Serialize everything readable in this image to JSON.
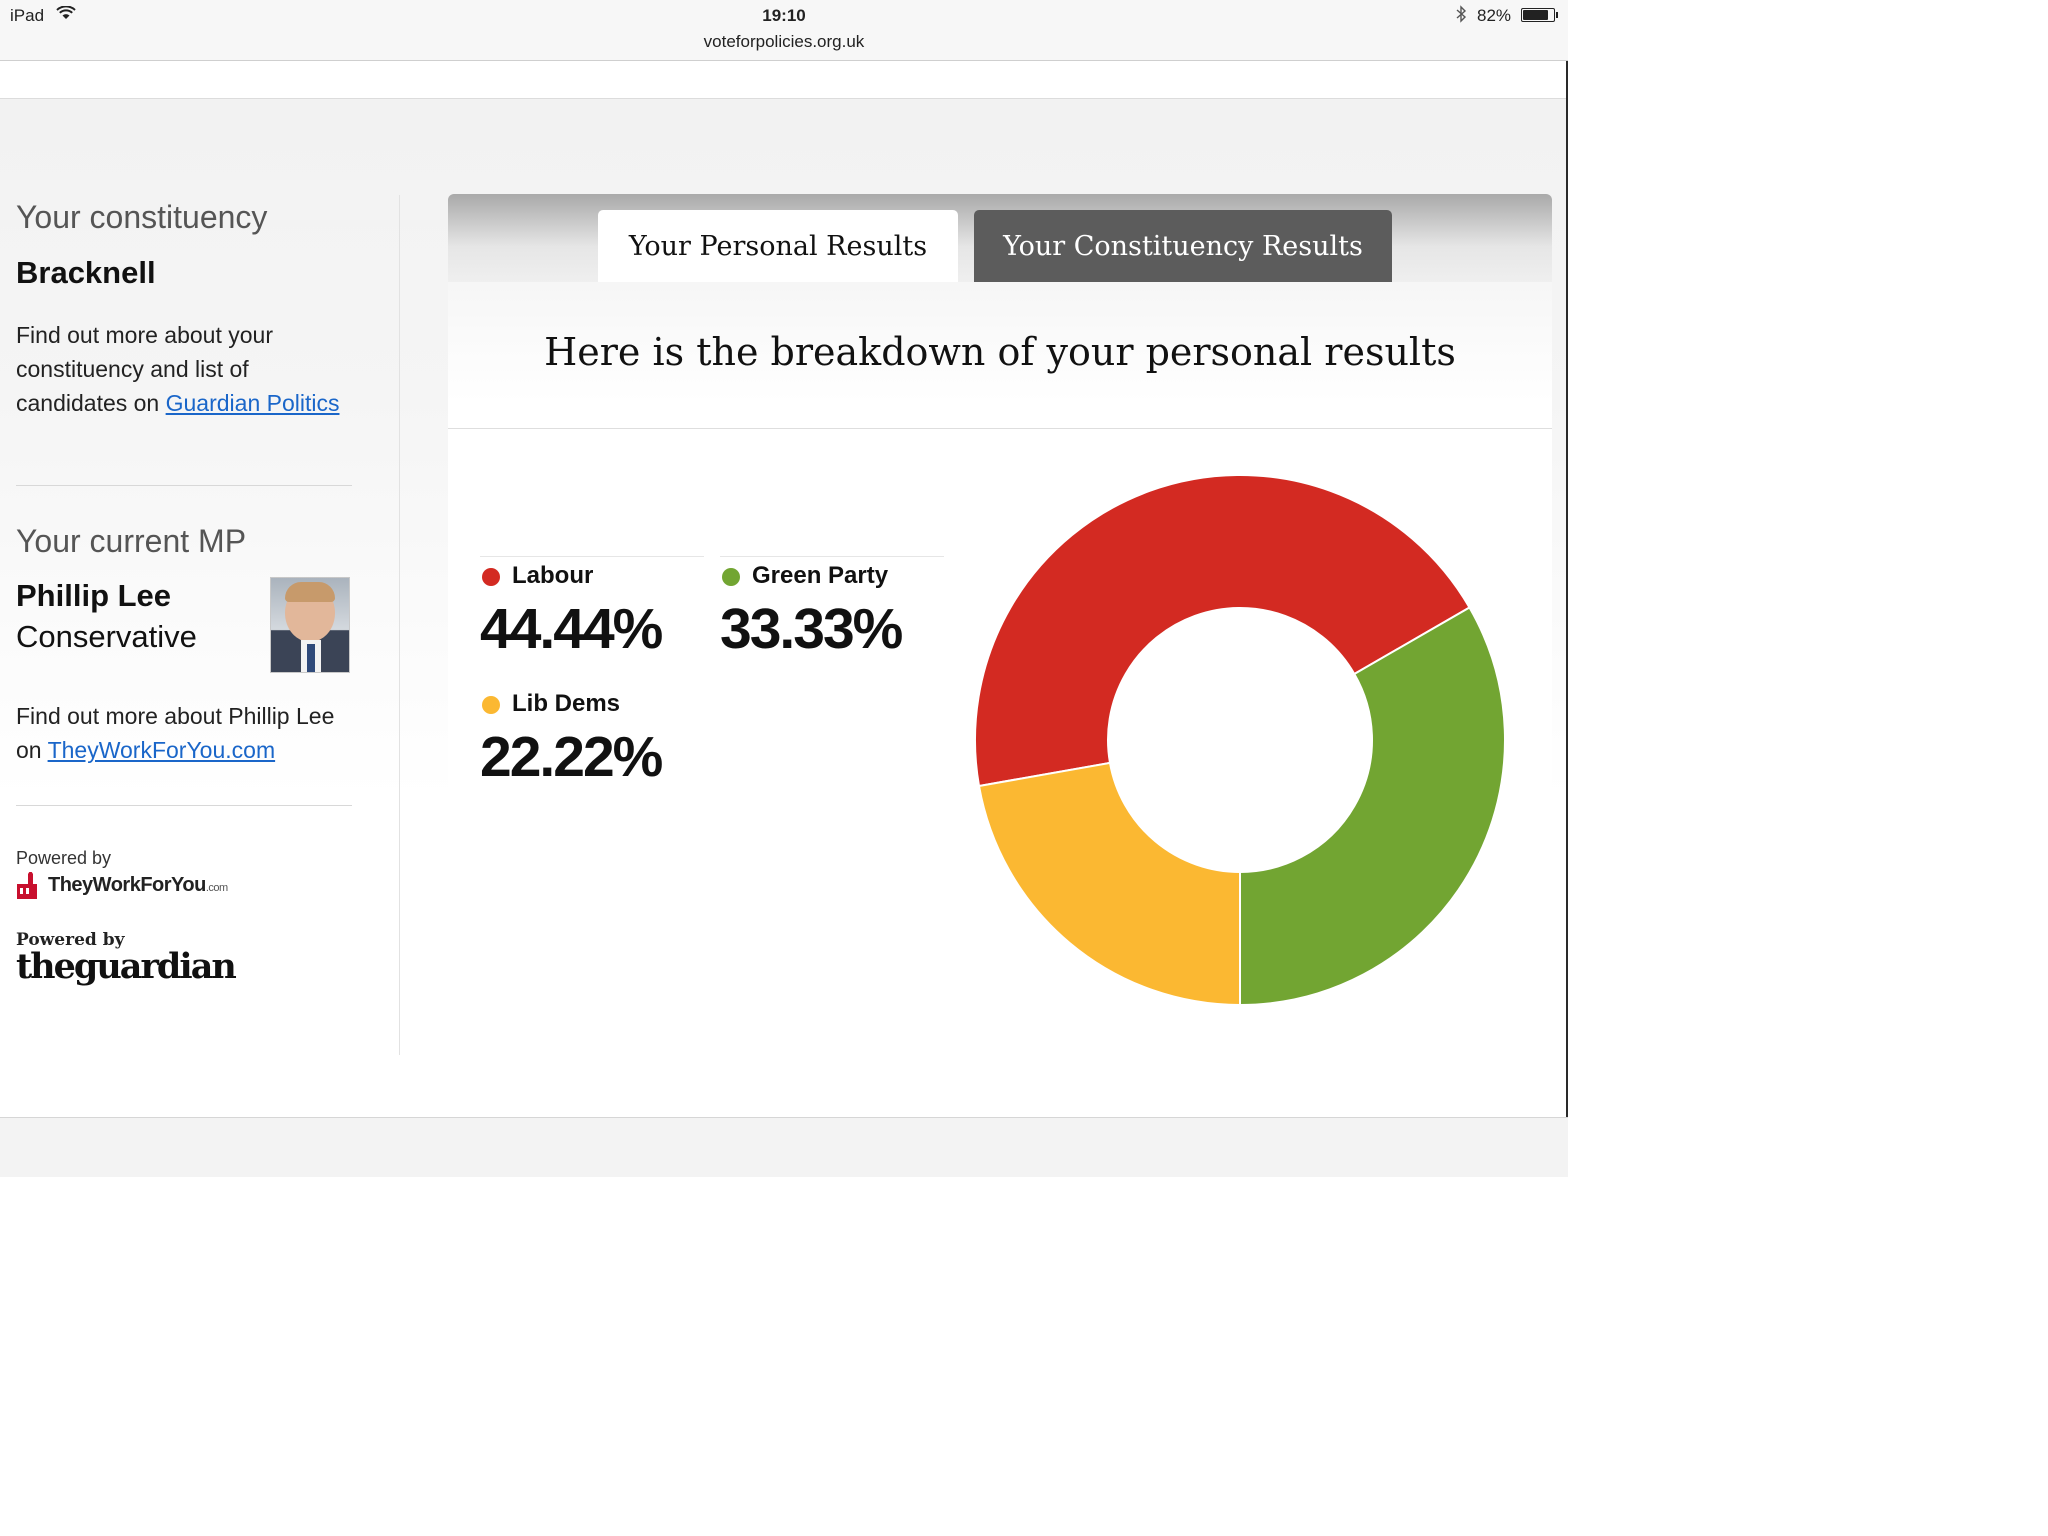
{
  "status_bar": {
    "device": "iPad",
    "time": "19:10",
    "url": "voteforpolicies.org.uk",
    "battery_text": "82%",
    "battery_level": 0.82
  },
  "sidebar": {
    "constituency_heading": "Your constituency",
    "constituency_name": "Bracknell",
    "constituency_text": "Find out more about your constituency and list of candidates on",
    "constituency_link": "Guardian Politics",
    "mp_heading": "Your current MP",
    "mp_name": "Phillip Lee",
    "mp_party": "Conservative",
    "mp_text": "Find out more about Phillip Lee on",
    "mp_link": "TheyWorkForYou.com",
    "powered_twfy": {
      "label": "Powered by",
      "name": "TheyWorkForYou",
      "suffix": ".com"
    },
    "powered_guardian": {
      "label": "Powered by",
      "name": "theguardian"
    }
  },
  "tabs": [
    {
      "label": "Your Personal Results",
      "active": true
    },
    {
      "label": "Your Constituency Results",
      "active": false
    }
  ],
  "results_title": "Here is the breakdown of your personal results",
  "chart_data": {
    "type": "pie",
    "donut": true,
    "categories": [
      "Labour",
      "Green Party",
      "Lib Dems"
    ],
    "values": [
      44.44,
      33.33,
      22.22
    ],
    "value_labels": [
      "44.44%",
      "33.33%",
      "22.22%"
    ],
    "colors": [
      "#d32a22",
      "#72a532",
      "#fbb832"
    ]
  }
}
